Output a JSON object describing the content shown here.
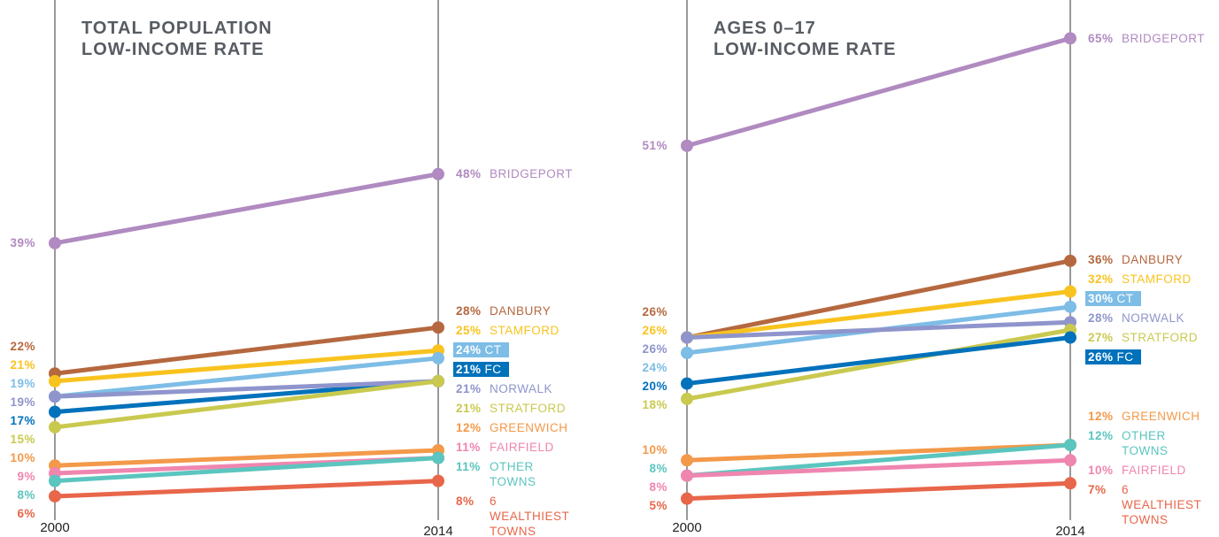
{
  "chart_data": [
    {
      "type": "slope",
      "title": "TOTAL POPULATION\nLOW-INCOME RATE",
      "categories": [
        "2000",
        "2014"
      ],
      "ylim": [
        0,
        70
      ],
      "series": [
        {
          "name": "BRIDGEPORT",
          "color": "#b08ac0",
          "values": [
            39,
            48
          ],
          "value_labels": [
            "39%",
            "48%"
          ]
        },
        {
          "name": "DANBURY",
          "color": "#b5683f",
          "values": [
            22,
            28
          ],
          "value_labels": [
            "22%",
            "28%"
          ]
        },
        {
          "name": "STAMFORD",
          "color": "#f9c31f",
          "values": [
            21,
            25
          ],
          "value_labels": [
            "21%",
            "25%"
          ]
        },
        {
          "name": "CT",
          "color": "#7dbde6",
          "values": [
            19,
            24
          ],
          "value_labels": [
            "19%",
            "24%"
          ],
          "highlight": true
        },
        {
          "name": "FC",
          "color": "#0071bb",
          "values": [
            17,
            21
          ],
          "value_labels": [
            "17%",
            "21%"
          ],
          "highlight": true
        },
        {
          "name": "NORWALK",
          "color": "#8f95cc",
          "values": [
            19,
            21
          ],
          "value_labels": [
            "19%",
            "21%"
          ]
        },
        {
          "name": "STRATFORD",
          "color": "#c9c94f",
          "values": [
            15,
            21
          ],
          "value_labels": [
            "15%",
            "21%"
          ]
        },
        {
          "name": "GREENWICH",
          "color": "#f3994a",
          "values": [
            10,
            12
          ],
          "value_labels": [
            "10%",
            "12%"
          ]
        },
        {
          "name": "FAIRFIELD",
          "color": "#ef86b0",
          "values": [
            9,
            11
          ],
          "value_labels": [
            "9%",
            "11%"
          ]
        },
        {
          "name": "OTHER TOWNS",
          "color": "#5bc5bf",
          "values": [
            8,
            11
          ],
          "value_labels": [
            "8%",
            "11%"
          ]
        },
        {
          "name": "6 WEALTHIEST TOWNS",
          "color": "#e8664a",
          "values": [
            6,
            8
          ],
          "value_labels": [
            "6%",
            "8%"
          ]
        }
      ]
    },
    {
      "type": "slope",
      "title": "AGES 0–17\nLOW-INCOME RATE",
      "categories": [
        "2000",
        "2014"
      ],
      "ylim": [
        0,
        70
      ],
      "series": [
        {
          "name": "BRIDGEPORT",
          "color": "#b08ac0",
          "values": [
            51,
            65
          ],
          "value_labels": [
            "51%",
            "65%"
          ]
        },
        {
          "name": "DANBURY",
          "color": "#b5683f",
          "values": [
            26,
            36
          ],
          "value_labels": [
            "26%",
            "36%"
          ]
        },
        {
          "name": "STAMFORD",
          "color": "#f9c31f",
          "values": [
            26,
            32
          ],
          "value_labels": [
            "26%",
            "32%"
          ]
        },
        {
          "name": "CT",
          "color": "#7dbde6",
          "values": [
            24,
            30
          ],
          "value_labels": [
            "24%",
            "30%"
          ],
          "highlight": true
        },
        {
          "name": "NORWALK",
          "color": "#8f95cc",
          "values": [
            26,
            28
          ],
          "value_labels": [
            "26%",
            "28%"
          ]
        },
        {
          "name": "STRATFORD",
          "color": "#c9c94f",
          "values": [
            18,
            27
          ],
          "value_labels": [
            "18%",
            "27%"
          ]
        },
        {
          "name": "FC",
          "color": "#0071bb",
          "values": [
            20,
            26
          ],
          "value_labels": [
            "20%",
            "26%"
          ],
          "highlight": true
        },
        {
          "name": "GREENWICH",
          "color": "#f3994a",
          "values": [
            10,
            12
          ],
          "value_labels": [
            "10%",
            "12%"
          ]
        },
        {
          "name": "OTHER TOWNS",
          "color": "#5bc5bf",
          "values": [
            8,
            12
          ],
          "value_labels": [
            "8%",
            "12%"
          ]
        },
        {
          "name": "FAIRFIELD",
          "color": "#ef86b0",
          "values": [
            8,
            10
          ],
          "value_labels": [
            "8%",
            "10%"
          ]
        },
        {
          "name": "6 WEALTHIEST TOWNS",
          "color": "#e8664a",
          "values": [
            5,
            7
          ],
          "value_labels": [
            "5%",
            "7%"
          ]
        }
      ]
    }
  ]
}
